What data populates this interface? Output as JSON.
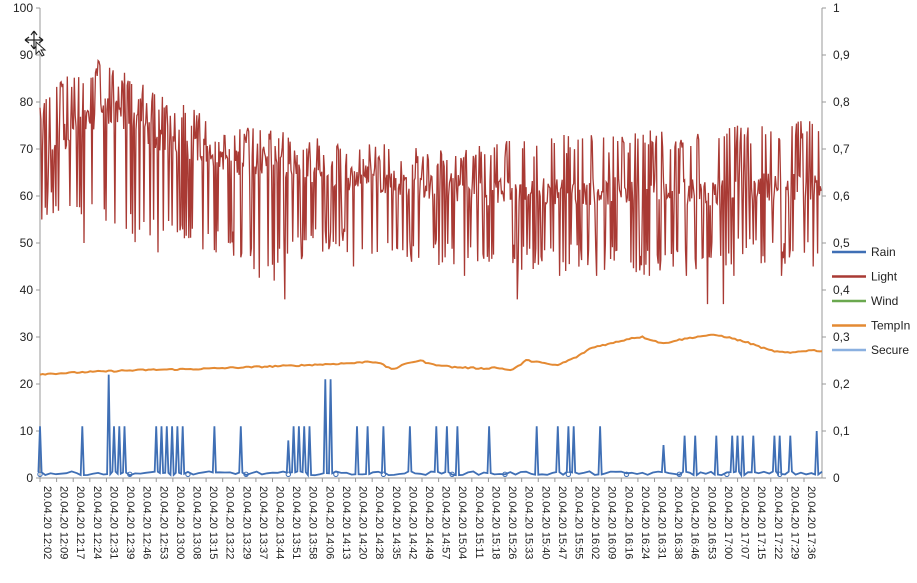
{
  "chart_data": {
    "type": "line",
    "y_left": {
      "min": 0,
      "max": 100,
      "ticks": [
        "0",
        "10",
        "20",
        "30",
        "40",
        "50",
        "60",
        "70",
        "80",
        "90",
        "100"
      ]
    },
    "y_right": {
      "min": 0,
      "max": 1,
      "ticks": [
        "0",
        "0,1",
        "0,2",
        "0,3",
        "0,4",
        "0,5",
        "0,6",
        "0,7",
        "0,8",
        "0,9",
        "1"
      ]
    },
    "grid": false,
    "legend_position": "right",
    "x_categories": [
      "20.04.20 12:02",
      "20.04.20 12:09",
      "20.04.20 12:17",
      "20.04.20 12:24",
      "20.04.20 12:31",
      "20.04.20 12:39",
      "20.04.20 12:46",
      "20.04.20 12:53",
      "20.04.20 13:00",
      "20.04.20 13:08",
      "20.04.20 13:15",
      "20.04.20 13:22",
      "20.04.20 13:29",
      "20.04.20 13:37",
      "20.04.20 13:44",
      "20.04.20 13:51",
      "20.04.20 13:58",
      "20.04.20 14:06",
      "20.04.20 14:13",
      "20.04.20 14:20",
      "20.04.20 14:28",
      "20.04.20 14:35",
      "20.04.20 14:42",
      "20.04.20 14:49",
      "20.04.20 14:57",
      "20.04.20 15:04",
      "20.04.20 15:11",
      "20.04.20 15:18",
      "20.04.20 15:26",
      "20.04.20 15:33",
      "20.04.20 15:40",
      "20.04.20 15:47",
      "20.04.20 15:55",
      "20.04.20 16:02",
      "20.04.20 16:09",
      "20.04.20 16:16",
      "20.04.20 16:24",
      "20.04.20 16:31",
      "20.04.20 16:38",
      "20.04.20 16:46",
      "20.04.20 16:53",
      "20.04.20 17:00",
      "20.04.20 17:07",
      "20.04.20 17:15",
      "20.04.20 17:22",
      "20.04.20 17:29",
      "20.04.20 17:36"
    ],
    "series": [
      {
        "name": "Rain",
        "color": "#3f6fb5",
        "axis": "left",
        "spikes": [
          [
            0,
            11
          ],
          [
            8,
            11
          ],
          [
            13,
            22
          ],
          [
            14,
            11
          ],
          [
            15,
            11
          ],
          [
            16,
            11
          ],
          [
            22,
            11
          ],
          [
            23,
            11
          ],
          [
            24,
            11
          ],
          [
            25,
            11
          ],
          [
            26,
            11
          ],
          [
            27,
            11
          ],
          [
            33,
            11
          ],
          [
            38,
            11
          ],
          [
            47,
            8
          ],
          [
            48,
            11
          ],
          [
            49,
            11
          ],
          [
            50,
            11
          ],
          [
            51,
            11
          ],
          [
            54,
            21
          ],
          [
            55,
            21
          ],
          [
            60,
            11
          ],
          [
            62,
            11
          ],
          [
            65,
            11
          ],
          [
            70,
            11
          ],
          [
            75,
            11
          ],
          [
            77,
            11
          ],
          [
            79,
            11
          ],
          [
            85,
            11
          ],
          [
            94,
            11
          ],
          [
            98,
            11
          ],
          [
            100,
            11
          ],
          [
            101,
            11
          ],
          [
            106,
            11
          ],
          [
            118,
            7
          ],
          [
            122,
            9
          ],
          [
            124,
            9
          ],
          [
            128,
            9
          ],
          [
            131,
            9
          ],
          [
            132,
            9
          ],
          [
            133,
            9
          ],
          [
            135,
            9
          ],
          [
            139,
            9
          ],
          [
            140,
            9
          ],
          [
            142,
            9
          ],
          [
            147,
            10
          ]
        ]
      },
      {
        "name": "Light",
        "color": "#a93a34",
        "axis": "left",
        "x": [
          0,
          3,
          6,
          9,
          12,
          15,
          18,
          21,
          24,
          27,
          30,
          33,
          36,
          39,
          42,
          45,
          48,
          51,
          54,
          57,
          60,
          63,
          66,
          69,
          72,
          75,
          78,
          81,
          84,
          87,
          90,
          93,
          96,
          99,
          102,
          105,
          108,
          111,
          114,
          117,
          120,
          123,
          126,
          129,
          132,
          135,
          138,
          141,
          144,
          147,
          148
        ],
        "base": [
          68,
          71,
          74,
          76,
          79,
          77,
          75,
          73,
          72,
          71,
          70,
          69,
          68,
          67,
          67,
          66,
          66,
          65,
          65,
          64,
          64,
          64,
          63,
          63,
          62,
          62,
          62,
          61,
          61,
          61,
          61,
          61,
          61,
          61,
          61,
          61,
          61,
          61,
          61,
          61,
          61,
          61,
          61,
          61,
          62,
          62,
          62,
          62,
          62,
          62,
          62
        ],
        "low": [
          57,
          55,
          55,
          52,
          53,
          52,
          50,
          50,
          50,
          49,
          48,
          48,
          47,
          45,
          42,
          45,
          46,
          47,
          48,
          48,
          48,
          47,
          47,
          46,
          45,
          45,
          45,
          44,
          44,
          44,
          44,
          44,
          44,
          44,
          44,
          44,
          44,
          44,
          43,
          43,
          43,
          44,
          45,
          45,
          45,
          45,
          45,
          45,
          45,
          45,
          45
        ],
        "high": [
          80,
          84,
          86,
          88,
          90,
          87,
          85,
          83,
          81,
          80,
          78,
          77,
          76,
          75,
          74,
          74,
          73,
          73,
          72,
          72,
          72,
          71,
          71,
          71,
          70,
          70,
          70,
          70,
          72,
          72,
          72,
          72,
          72,
          73,
          73,
          73,
          73,
          73,
          74,
          74,
          73,
          73,
          74,
          74,
          75,
          75,
          75,
          76,
          76,
          76,
          76
        ],
        "dips": [
          [
            0,
            55
          ],
          [
            1,
            56
          ],
          [
            8,
            50
          ],
          [
            16,
            53
          ],
          [
            22,
            48
          ],
          [
            33,
            48
          ],
          [
            44,
            42
          ],
          [
            46,
            38
          ],
          [
            59,
            45
          ],
          [
            70,
            46
          ],
          [
            80,
            43
          ],
          [
            90,
            38
          ],
          [
            98,
            43
          ],
          [
            105,
            43
          ],
          [
            115,
            43
          ],
          [
            122,
            43
          ],
          [
            126,
            37
          ],
          [
            129,
            37
          ],
          [
            131,
            43
          ],
          [
            140,
            43
          ],
          [
            146,
            45
          ]
        ]
      },
      {
        "name": "Wind",
        "color": "#6aa84f",
        "axis": "left",
        "values": []
      },
      {
        "name": "TempIn",
        "color": "#e48a33",
        "axis": "left",
        "x": [
          0,
          10,
          20,
          30,
          40,
          50,
          60,
          62,
          64,
          65,
          66,
          67,
          68,
          70,
          72,
          74,
          76,
          78,
          80,
          82,
          84,
          86,
          88,
          89,
          90,
          91,
          92,
          94,
          96,
          98,
          100,
          102,
          104,
          106,
          108,
          110,
          112,
          114,
          116,
          118,
          120,
          122,
          124,
          126,
          128,
          130,
          132,
          134,
          136,
          138,
          140,
          142,
          144,
          146,
          148
        ],
        "values": [
          22.1,
          22.6,
          23.0,
          23.2,
          23.6,
          24.0,
          24.5,
          24.8,
          24.6,
          24.0,
          23.4,
          23.2,
          23.7,
          24.6,
          25.0,
          24.2,
          24.0,
          23.6,
          23.5,
          23.4,
          23.3,
          23.5,
          23.2,
          22.9,
          23.4,
          24.2,
          25.0,
          24.8,
          24.2,
          24.0,
          25.0,
          26.0,
          27.5,
          28.2,
          28.6,
          29.2,
          29.8,
          30.0,
          29.3,
          28.6,
          29.2,
          29.6,
          30.0,
          30.3,
          30.4,
          30.0,
          29.4,
          28.8,
          28.0,
          27.2,
          26.8,
          26.6,
          27.0,
          27.2,
          27.0
        ]
      },
      {
        "name": "Secure",
        "color": "#8ab0e0",
        "axis": "right",
        "values": []
      }
    ]
  }
}
